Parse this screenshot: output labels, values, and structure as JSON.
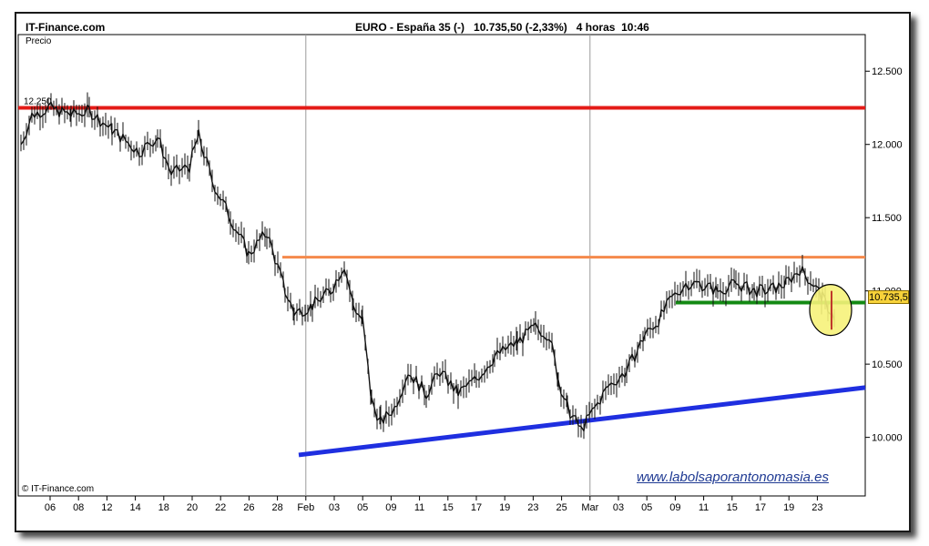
{
  "header": {
    "site": "IT-Finance.com",
    "title": "EURO - España 35 (-)   10.735,50 (-2,33%)   4 horas  10:46"
  },
  "labels": {
    "price_label": "Precio",
    "level_label": "12.250",
    "copyright": "© IT-Finance.com",
    "watermark": "www.labolsaporantonomasia.es",
    "last_value": "10.735,5"
  },
  "colors": {
    "red_line": "#e41b17",
    "orange_line": "#f58a4b",
    "green_line": "#138a13",
    "blue_line": "#1f2fe0",
    "highlight": "#f6f27a"
  },
  "chart_data": {
    "type": "candlestick",
    "yaxis_ticks": [
      "12.500",
      "12.000",
      "11.500",
      "11.000",
      "10.500",
      "10.000"
    ],
    "yaxis_values": [
      12500,
      12000,
      11500,
      11000,
      10500,
      10000
    ],
    "ylim": [
      9600,
      12750
    ],
    "xaxis_ticks": [
      "06",
      "08",
      "12",
      "14",
      "18",
      "20",
      "22",
      "26",
      "28",
      "Feb",
      "03",
      "05",
      "09",
      "11",
      "15",
      "17",
      "19",
      "23",
      "25",
      "Mar",
      "03",
      "05",
      "09",
      "11",
      "15",
      "17",
      "19",
      "23"
    ],
    "price_path": [
      [
        0,
        12000
      ],
      [
        12,
        12200
      ],
      [
        30,
        12250
      ],
      [
        55,
        12200
      ],
      [
        75,
        12230
      ],
      [
        100,
        12100
      ],
      [
        130,
        11950
      ],
      [
        150,
        12050
      ],
      [
        165,
        11800
      ],
      [
        185,
        11850
      ],
      [
        195,
        12060
      ],
      [
        210,
        11750
      ],
      [
        230,
        11500
      ],
      [
        250,
        11250
      ],
      [
        270,
        11400
      ],
      [
        290,
        11000
      ],
      [
        300,
        10850
      ],
      [
        320,
        10900
      ],
      [
        340,
        11000
      ],
      [
        355,
        11180
      ],
      [
        365,
        10900
      ],
      [
        375,
        10800
      ],
      [
        385,
        10250
      ],
      [
        395,
        10100
      ],
      [
        410,
        10200
      ],
      [
        425,
        10450
      ],
      [
        445,
        10300
      ],
      [
        460,
        10450
      ],
      [
        480,
        10300
      ],
      [
        500,
        10400
      ],
      [
        520,
        10550
      ],
      [
        545,
        10650
      ],
      [
        565,
        10750
      ],
      [
        580,
        10700
      ],
      [
        590,
        10400
      ],
      [
        600,
        10200
      ],
      [
        615,
        10050
      ],
      [
        630,
        10200
      ],
      [
        645,
        10350
      ],
      [
        665,
        10450
      ],
      [
        685,
        10700
      ],
      [
        700,
        10800
      ],
      [
        715,
        10950
      ],
      [
        730,
        11050
      ],
      [
        745,
        11050
      ],
      [
        765,
        11000
      ],
      [
        785,
        11050
      ],
      [
        805,
        11000
      ],
      [
        820,
        11000
      ],
      [
        840,
        11050
      ],
      [
        855,
        11150
      ],
      [
        870,
        11050
      ],
      [
        880,
        10950
      ],
      [
        890,
        10850
      ],
      [
        895,
        10740
      ]
    ],
    "levels": {
      "resistance_red": 12250,
      "resistance_orange": 11230,
      "support_green": 10920,
      "last_close": 10735.5
    },
    "trendline_blue": [
      [
        28,
        9880
      ],
      [
        950,
        10340
      ]
    ]
  }
}
